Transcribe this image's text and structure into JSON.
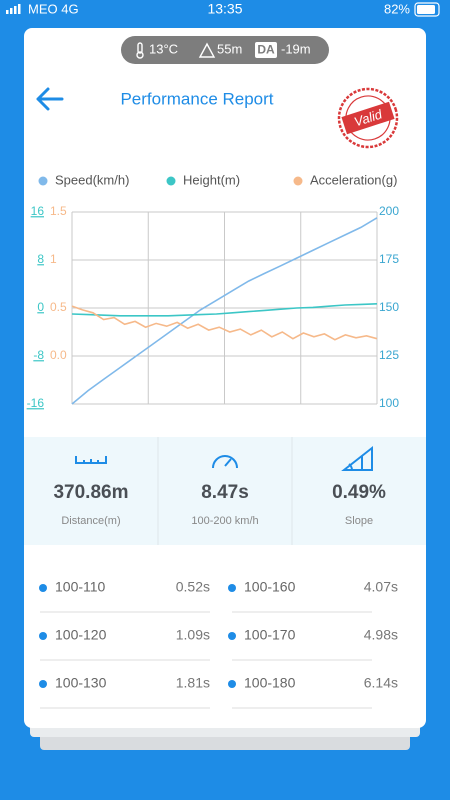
{
  "status_bar": {
    "carrier": "MEO 4G",
    "time": "13:35",
    "battery": "82%"
  },
  "conditions": {
    "temperature": "13°C",
    "altitude": "55m",
    "da_label": "DA",
    "density_altitude": "-19m"
  },
  "header": {
    "title": "Performance Report",
    "stamp": "Valid"
  },
  "chart_data": {
    "type": "line",
    "grid": true,
    "ylim": [
      -16,
      16
    ],
    "yticks": [
      -16,
      -8,
      0,
      8,
      16
    ],
    "y2lim": [
      100,
      200
    ],
    "y2ticks": [
      100,
      125,
      150,
      175,
      200
    ],
    "y3lim": [
      -0.5,
      1.5
    ],
    "y3ticks": [
      {
        "value": 0,
        "label": "0.0"
      },
      0.5,
      1,
      1.5
    ],
    "series": [
      {
        "name": "Speed(km/h)",
        "color": "#80b9ea",
        "axis": "y2",
        "values": [
          100,
          107,
          113,
          119,
          125,
          131,
          137,
          143,
          149,
          154,
          159,
          164,
          168,
          172,
          176,
          180,
          184,
          188,
          192,
          197
        ]
      },
      {
        "name": "Height(m)",
        "color": "#3cc6c6",
        "axis": "y",
        "values": [
          -1,
          -1.1,
          -1.2,
          -1.3,
          -1.3,
          -1.3,
          -1.3,
          -1.2,
          -1.1,
          -1,
          -0.8,
          -0.6,
          -0.4,
          -0.2,
          0,
          0.1,
          0.3,
          0.5,
          0.6,
          0.7
        ]
      },
      {
        "name": "Acceleration(g)",
        "color": "#f6b98a",
        "axis": "y3",
        "values": [
          0.52,
          0.48,
          0.45,
          0.38,
          0.4,
          0.33,
          0.36,
          0.3,
          0.34,
          0.31,
          0.35,
          0.29,
          0.33,
          0.27,
          0.3,
          0.25,
          0.28,
          0.22,
          0.27,
          0.2,
          0.25,
          0.18,
          0.24,
          0.2,
          0.23,
          0.17,
          0.22,
          0.19,
          0.21,
          0.18
        ]
      }
    ]
  },
  "stats": [
    {
      "value": "370.86m",
      "label": "Distance(m)"
    },
    {
      "value": "8.47s",
      "label": "100-200 km/h"
    },
    {
      "value": "0.49%",
      "label": "Slope"
    }
  ],
  "splits": [
    {
      "range": "100-110",
      "time": "0.52s"
    },
    {
      "range": "100-160",
      "time": "4.07s"
    },
    {
      "range": "100-120",
      "time": "1.09s"
    },
    {
      "range": "100-170",
      "time": "4.98s"
    },
    {
      "range": "100-130",
      "time": "1.81s"
    },
    {
      "range": "100-180",
      "time": "6.14s"
    }
  ]
}
